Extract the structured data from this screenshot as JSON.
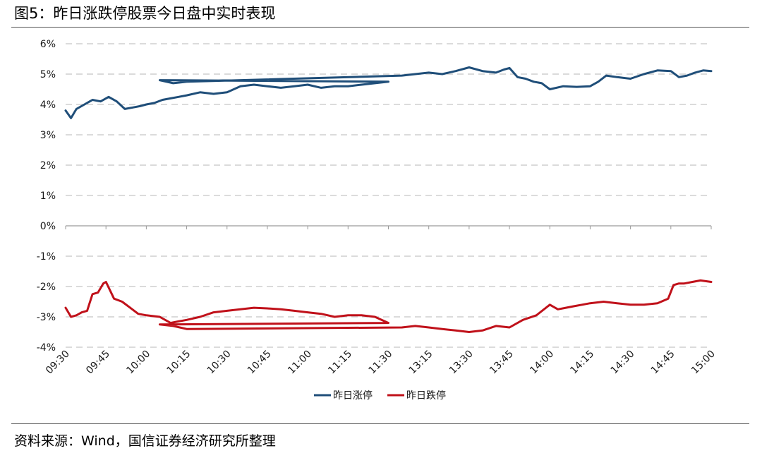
{
  "figure_title": "图5：昨日涨跌停股票今日盘中实时表现",
  "source_text": "资料来源：Wind，国信证券经济研究所整理",
  "chart_data": {
    "type": "line",
    "title": "",
    "xlabel": "",
    "ylabel": "",
    "ylim": [
      -4,
      6
    ],
    "y_ticks": [
      6,
      5,
      4,
      3,
      2,
      1,
      0,
      -1,
      -2,
      -3,
      -4
    ],
    "y_tick_labels": [
      "6%",
      "5%",
      "4%",
      "3%",
      "2%",
      "1%",
      "0%",
      "-1%",
      "-2%",
      "-3%",
      "-4%"
    ],
    "x_ticks": [
      "09:30",
      "09:45",
      "10:00",
      "10:15",
      "10:30",
      "10:45",
      "11:00",
      "11:15",
      "11:30",
      "13:15",
      "13:30",
      "13:45",
      "14:00",
      "14:15",
      "14:30",
      "14:45",
      "15:00"
    ],
    "grid": "horizontal-dashed",
    "legend": "bottom-center",
    "series": [
      {
        "name": "昨日涨停",
        "color": "#1f4e79",
        "x": [
          "09:30",
          "09:32",
          "09:34",
          "09:37",
          "09:40",
          "09:43",
          "09:46",
          "09:49",
          "09:52",
          "09:55",
          "09:58",
          "10:00",
          "10:03",
          "10:06",
          "10:09",
          "10:12",
          "10:15",
          "10:20",
          "10:25",
          "10:30",
          "10:35",
          "10:40",
          "10:45",
          "10:50",
          "10:55",
          "11:00",
          "11:05",
          "11:10",
          "11:15",
          "11:20",
          "11:25",
          "11:30",
          "11:35",
          "11:40",
          "11:45",
          "13:05",
          "13:10",
          "13:15",
          "13:20",
          "13:25",
          "13:30",
          "13:35",
          "13:40",
          "13:43",
          "13:45",
          "13:48",
          "13:51",
          "13:54",
          "13:57",
          "14:00",
          "14:05",
          "14:10",
          "14:15",
          "14:18",
          "14:21",
          "14:25",
          "14:30",
          "14:35",
          "14:40",
          "14:45",
          "14:48",
          "14:51",
          "14:54",
          "14:57",
          "15:00"
        ],
        "values": [
          3.8,
          3.55,
          3.85,
          4.0,
          4.15,
          4.1,
          4.25,
          4.1,
          3.85,
          3.9,
          3.95,
          4.0,
          4.05,
          4.15,
          4.2,
          4.25,
          4.3,
          4.4,
          4.35,
          4.4,
          4.6,
          4.65,
          4.6,
          4.55,
          4.6,
          4.65,
          4.55,
          4.6,
          4.6,
          4.65,
          4.7,
          4.75,
          4.8,
          4.7,
          4.75,
          4.95,
          5.0,
          5.05,
          5.0,
          5.1,
          5.22,
          5.1,
          5.05,
          5.15,
          5.2,
          4.9,
          4.85,
          4.75,
          4.7,
          4.5,
          4.6,
          4.58,
          4.6,
          4.75,
          4.95,
          4.9,
          4.85,
          5.0,
          5.12,
          5.1,
          4.9,
          4.95,
          5.05,
          5.12,
          5.1
        ]
      },
      {
        "name": "昨日跌停",
        "color": "#c0111a",
        "x": [
          "09:30",
          "09:32",
          "09:34",
          "09:36",
          "09:38",
          "09:40",
          "09:42",
          "09:44",
          "09:45",
          "09:48",
          "09:51",
          "09:54",
          "09:57",
          "10:00",
          "10:05",
          "10:09",
          "10:12",
          "10:15",
          "10:20",
          "10:25",
          "10:30",
          "10:35",
          "10:40",
          "10:45",
          "10:50",
          "10:55",
          "11:00",
          "11:05",
          "11:10",
          "11:15",
          "11:20",
          "11:25",
          "11:30",
          "11:35",
          "11:40",
          "11:45",
          "13:05",
          "13:10",
          "13:15",
          "13:20",
          "13:25",
          "13:30",
          "13:35",
          "13:40",
          "13:45",
          "13:50",
          "13:55",
          "14:00",
          "14:03",
          "14:06",
          "14:09",
          "14:12",
          "14:15",
          "14:20",
          "14:25",
          "14:30",
          "14:35",
          "14:40",
          "14:44",
          "14:46",
          "14:48",
          "14:50",
          "14:53",
          "14:56",
          "15:00"
        ],
        "values": [
          -2.7,
          -3.0,
          -2.95,
          -2.85,
          -2.8,
          -2.25,
          -2.2,
          -1.9,
          -1.85,
          -2.4,
          -2.5,
          -2.7,
          -2.9,
          -2.95,
          -3.0,
          -3.2,
          -3.15,
          -3.1,
          -3.0,
          -2.85,
          -2.8,
          -2.75,
          -2.7,
          -2.72,
          -2.75,
          -2.8,
          -2.85,
          -2.9,
          -3.0,
          -2.95,
          -2.95,
          -3.0,
          -3.2,
          -3.25,
          -3.3,
          -3.4,
          -3.35,
          -3.3,
          -3.35,
          -3.4,
          -3.45,
          -3.5,
          -3.45,
          -3.3,
          -3.35,
          -3.1,
          -2.95,
          -2.6,
          -2.75,
          -2.7,
          -2.65,
          -2.6,
          -2.55,
          -2.5,
          -2.55,
          -2.6,
          -2.6,
          -2.55,
          -2.4,
          -1.95,
          -1.9,
          -1.9,
          -1.85,
          -1.8,
          -1.85
        ]
      }
    ]
  }
}
